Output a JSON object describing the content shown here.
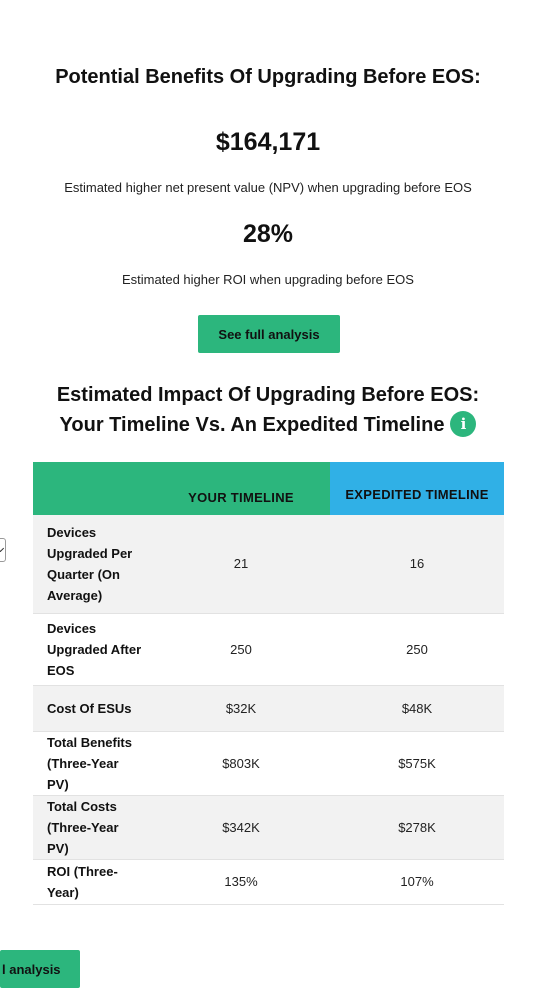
{
  "benefits": {
    "heading": "Potential Benefits Of Upgrading Before EOS:",
    "npv_value": "$164,171",
    "npv_desc": "Estimated higher net present value (NPV) when upgrading before EOS",
    "roi_value": "28%",
    "roi_desc": "Estimated higher ROI when upgrading before EOS",
    "button_label": "See full analysis"
  },
  "impact": {
    "heading_line1": "Estimated Impact Of Upgrading Before EOS:",
    "heading_line2": "Your Timeline Vs. An Expedited Timeline",
    "info_glyph": "i"
  },
  "table": {
    "columns": [
      "",
      "YOUR TIMELINE",
      "EXPEDITED TIMELINE"
    ],
    "rows": [
      {
        "label": "Devices Upgraded Per Quarter (On Average)",
        "yours": "21",
        "expedited": "16"
      },
      {
        "label": "Devices Upgraded After EOS",
        "yours": "250",
        "expedited": "250"
      },
      {
        "label": "Cost Of ESUs",
        "yours": "$32K",
        "expedited": "$48K"
      },
      {
        "label": "Total Benefits (Three-Year PV)",
        "yours": "$803K",
        "expedited": "$575K"
      },
      {
        "label": "Total Costs (Three-Year PV)",
        "yours": "$342K",
        "expedited": "$278K"
      },
      {
        "label": "ROI (Three-Year)",
        "yours": "135%",
        "expedited": "107%"
      }
    ]
  },
  "bottom": {
    "button_label_partial": "l analysis"
  },
  "colors": {
    "accent_green": "#2cb67d",
    "accent_blue": "#30b0e6",
    "row_alt": "#f2f2f2"
  }
}
